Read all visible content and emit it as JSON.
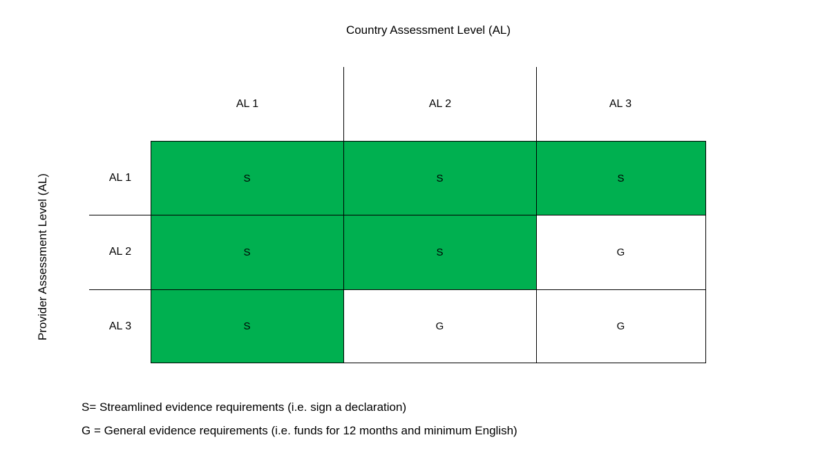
{
  "title": "Country Assessment Level (AL)",
  "y_axis_label": "Provider Assessment Level (AL)",
  "columns": [
    "AL 1",
    "AL 2",
    "AL 3"
  ],
  "rows": [
    "AL 1",
    "AL 2",
    "AL 3"
  ],
  "cells": [
    [
      "S",
      "S",
      "S"
    ],
    [
      "S",
      "S",
      "G"
    ],
    [
      "S",
      "G",
      "G"
    ]
  ],
  "colors": {
    "streamlined": "#00b050",
    "general": "#ffffff",
    "line": "#000000"
  },
  "legend": [
    "S= Streamlined evidence requirements (i.e. sign a declaration)",
    "G = General evidence requirements (i.e. funds for 12 months and minimum English)"
  ]
}
